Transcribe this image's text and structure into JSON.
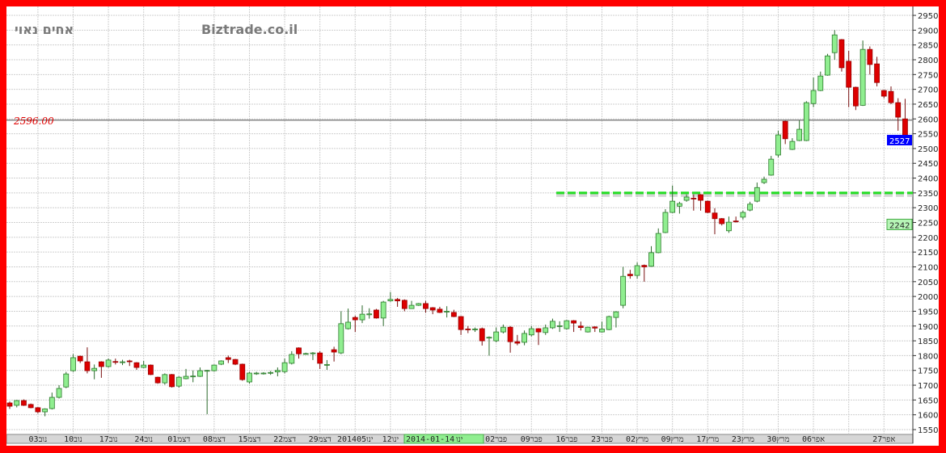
{
  "header": {
    "stock_name": "אחים נאוי",
    "site": "Biztrade.co.il"
  },
  "reference_line": {
    "label": "2596.00",
    "value": 2596
  },
  "badges": {
    "last_price": "2527",
    "last_price_color": "#0000ff",
    "marker_price": "2242",
    "marker_color": "#b6f5b6"
  },
  "colors": {
    "up": "#90ee90",
    "down": "#dd0000",
    "border": "#ff0000",
    "trendline": "#22dd22"
  },
  "chart_data": {
    "type": "candlestick",
    "ylim": [
      1550,
      2950
    ],
    "yticks": [
      1550,
      1600,
      1650,
      1700,
      1750,
      1800,
      1850,
      1900,
      1950,
      2000,
      2050,
      2100,
      2150,
      2200,
      2250,
      2300,
      2350,
      2400,
      2450,
      2500,
      2550,
      2600,
      2650,
      2700,
      2750,
      2800,
      2850,
      2900,
      2950
    ],
    "grid": true,
    "horizontal_line": 2596,
    "trendline_level": 2350,
    "xtick_labels": [
      "03נוב",
      "10נוב",
      "17נוב",
      "24נוב",
      "01דצמ",
      "08דצמ",
      "15דצמ",
      "22דצמ",
      "29דצמ",
      "2014ינו05",
      "12ינו",
      "",
      "",
      "02פבר",
      "09פבר",
      "16פבר",
      "23פבר",
      "02מרץ",
      "09מרץ",
      "17מרץ",
      "23מרץ",
      "30מרץ",
      "06אפר",
      "",
      "27אפר"
    ],
    "highlighted_date": "2014-01-14",
    "partial_label": "ינו",
    "ohlc": [
      [
        1640,
        1645,
        1620,
        1629
      ],
      [
        1632,
        1650,
        1625,
        1648
      ],
      [
        1648,
        1652,
        1630,
        1632
      ],
      [
        1635,
        1638,
        1622,
        1624
      ],
      [
        1624,
        1626,
        1605,
        1610
      ],
      [
        1610,
        1622,
        1595,
        1620
      ],
      [
        1621,
        1675,
        1618,
        1659
      ],
      [
        1659,
        1700,
        1655,
        1689
      ],
      [
        1694,
        1745,
        1690,
        1738
      ],
      [
        1749,
        1805,
        1745,
        1793
      ],
      [
        1798,
        1800,
        1775,
        1782
      ],
      [
        1779,
        1828,
        1740,
        1749
      ],
      [
        1749,
        1770,
        1720,
        1757
      ],
      [
        1779,
        1781,
        1725,
        1763
      ],
      [
        1763,
        1790,
        1760,
        1785
      ],
      [
        1780,
        1790,
        1770,
        1779
      ],
      [
        1779,
        1786,
        1768,
        1779
      ],
      [
        1782,
        1786,
        1765,
        1780
      ],
      [
        1776,
        1778,
        1752,
        1760
      ],
      [
        1760,
        1782,
        1758,
        1768
      ],
      [
        1768,
        1770,
        1734,
        1736
      ],
      [
        1727,
        1729,
        1705,
        1708
      ],
      [
        1708,
        1740,
        1702,
        1736
      ],
      [
        1736,
        1738,
        1692,
        1695
      ],
      [
        1697,
        1730,
        1692,
        1727
      ],
      [
        1722,
        1755,
        1720,
        1730
      ],
      [
        1729,
        1750,
        1710,
        1731
      ],
      [
        1730,
        1760,
        1728,
        1749
      ],
      [
        1748,
        1752,
        1602,
        1750
      ],
      [
        1749,
        1770,
        1746,
        1768
      ],
      [
        1771,
        1784,
        1768,
        1782
      ],
      [
        1793,
        1800,
        1775,
        1787
      ],
      [
        1787,
        1789,
        1768,
        1771
      ],
      [
        1771,
        1773,
        1715,
        1719
      ],
      [
        1711,
        1745,
        1705,
        1741
      ],
      [
        1740,
        1745,
        1735,
        1741
      ],
      [
        1740,
        1744,
        1736,
        1741
      ],
      [
        1742,
        1748,
        1735,
        1743
      ],
      [
        1745,
        1760,
        1730,
        1750
      ],
      [
        1746,
        1790,
        1740,
        1776
      ],
      [
        1774,
        1815,
        1770,
        1804
      ],
      [
        1826,
        1828,
        1790,
        1806
      ],
      [
        1806,
        1810,
        1805,
        1807
      ],
      [
        1808,
        1812,
        1785,
        1809
      ],
      [
        1809,
        1815,
        1755,
        1774
      ],
      [
        1770,
        1785,
        1752,
        1770
      ],
      [
        1820,
        1830,
        1780,
        1812
      ],
      [
        1809,
        1950,
        1805,
        1908
      ],
      [
        1891,
        1959,
        1888,
        1913
      ],
      [
        1929,
        1935,
        1880,
        1921
      ],
      [
        1921,
        1970,
        1910,
        1940
      ],
      [
        1938,
        1960,
        1925,
        1941
      ],
      [
        1954,
        1958,
        1925,
        1927
      ],
      [
        1927,
        1985,
        1900,
        1981
      ],
      [
        1985,
        2015,
        1982,
        1990
      ],
      [
        1990,
        1995,
        1965,
        1985
      ],
      [
        1987,
        1990,
        1950,
        1959
      ],
      [
        1959,
        1985,
        1958,
        1970
      ],
      [
        1970,
        1978,
        1968,
        1976
      ],
      [
        1976,
        1985,
        1945,
        1959
      ],
      [
        1962,
        1964,
        1940,
        1954
      ],
      [
        1957,
        1965,
        1944,
        1946
      ],
      [
        1950,
        1967,
        1929,
        1950
      ],
      [
        1946,
        1955,
        1930,
        1932
      ],
      [
        1932,
        1934,
        1870,
        1888
      ],
      [
        1890,
        1900,
        1876,
        1889
      ],
      [
        1888,
        1895,
        1880,
        1890
      ],
      [
        1891,
        1895,
        1834,
        1850
      ],
      [
        1860,
        1865,
        1800,
        1862
      ],
      [
        1850,
        1895,
        1845,
        1880
      ],
      [
        1880,
        1905,
        1875,
        1896
      ],
      [
        1896,
        1900,
        1810,
        1847
      ],
      [
        1847,
        1870,
        1835,
        1842
      ],
      [
        1845,
        1885,
        1835,
        1875
      ],
      [
        1870,
        1900,
        1865,
        1891
      ],
      [
        1891,
        1893,
        1836,
        1880
      ],
      [
        1878,
        1905,
        1870,
        1894
      ],
      [
        1894,
        1925,
        1890,
        1916
      ],
      [
        1900,
        1916,
        1880,
        1901
      ],
      [
        1891,
        1920,
        1888,
        1918
      ],
      [
        1918,
        1920,
        1880,
        1910
      ],
      [
        1900,
        1915,
        1885,
        1895
      ],
      [
        1880,
        1898,
        1878,
        1896
      ],
      [
        1897,
        1899,
        1880,
        1893
      ],
      [
        1880,
        1915,
        1878,
        1890
      ],
      [
        1888,
        1935,
        1886,
        1932
      ],
      [
        1929,
        1950,
        1895,
        1948
      ],
      [
        1970,
        2100,
        1960,
        2068
      ],
      [
        2075,
        2090,
        2060,
        2070
      ],
      [
        2071,
        2115,
        2060,
        2104
      ],
      [
        2105,
        2108,
        2050,
        2100
      ],
      [
        2102,
        2170,
        2100,
        2148
      ],
      [
        2148,
        2230,
        2146,
        2213
      ],
      [
        2216,
        2295,
        2214,
        2284
      ],
      [
        2284,
        2375,
        2282,
        2322
      ],
      [
        2305,
        2320,
        2280,
        2314
      ],
      [
        2325,
        2345,
        2320,
        2336
      ],
      [
        2332,
        2345,
        2290,
        2330
      ],
      [
        2344,
        2346,
        2290,
        2325
      ],
      [
        2322,
        2324,
        2282,
        2284
      ],
      [
        2282,
        2298,
        2210,
        2263
      ],
      [
        2263,
        2265,
        2240,
        2246
      ],
      [
        2222,
        2270,
        2215,
        2251
      ],
      [
        2255,
        2270,
        2250,
        2253
      ],
      [
        2268,
        2290,
        2260,
        2284
      ],
      [
        2292,
        2320,
        2288,
        2312
      ],
      [
        2322,
        2385,
        2318,
        2368
      ],
      [
        2385,
        2405,
        2380,
        2396
      ],
      [
        2410,
        2475,
        2408,
        2464
      ],
      [
        2478,
        2560,
        2470,
        2546
      ],
      [
        2592,
        2594,
        2515,
        2533
      ],
      [
        2497,
        2535,
        2495,
        2524
      ],
      [
        2527,
        2595,
        2525,
        2565
      ],
      [
        2527,
        2660,
        2525,
        2655
      ],
      [
        2652,
        2740,
        2640,
        2696
      ],
      [
        2696,
        2760,
        2694,
        2745
      ],
      [
        2748,
        2820,
        2746,
        2813
      ],
      [
        2824,
        2900,
        2800,
        2884
      ],
      [
        2868,
        2870,
        2760,
        2773
      ],
      [
        2795,
        2830,
        2640,
        2707
      ],
      [
        2707,
        2709,
        2630,
        2644
      ],
      [
        2646,
        2865,
        2644,
        2835
      ],
      [
        2835,
        2845,
        2750,
        2784
      ],
      [
        2786,
        2810,
        2710,
        2723
      ],
      [
        2696,
        2698,
        2670,
        2677
      ],
      [
        2693,
        2710,
        2650,
        2655
      ],
      [
        2655,
        2670,
        2560,
        2606
      ],
      [
        2600,
        2668,
        2520,
        2527
      ]
    ]
  }
}
